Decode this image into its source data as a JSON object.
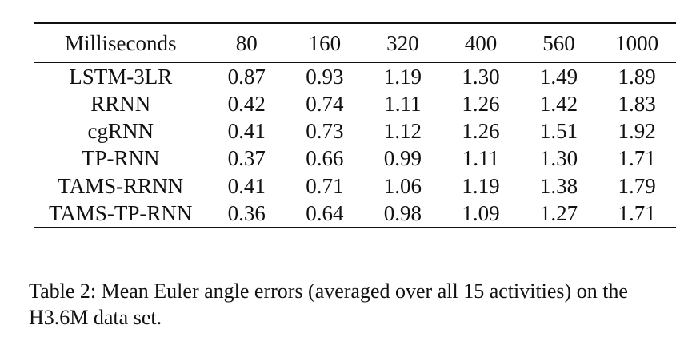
{
  "table": {
    "header": [
      "Milliseconds",
      "80",
      "160",
      "320",
      "400",
      "560",
      "1000"
    ],
    "group1": [
      {
        "method": "LSTM-3LR",
        "values": [
          "0.87",
          "0.93",
          "1.19",
          "1.30",
          "1.49",
          "1.89"
        ],
        "bold": [
          false,
          false,
          false,
          false,
          false,
          false
        ]
      },
      {
        "method": "RRNN",
        "values": [
          "0.42",
          "0.74",
          "1.11",
          "1.26",
          "1.42",
          "1.83"
        ],
        "bold": [
          false,
          false,
          false,
          false,
          false,
          false
        ]
      },
      {
        "method": "cgRNN",
        "values": [
          "0.41",
          "0.73",
          "1.12",
          "1.26",
          "1.51",
          "1.92"
        ],
        "bold": [
          false,
          false,
          false,
          false,
          false,
          false
        ]
      },
      {
        "method": "TP-RNN",
        "values": [
          "0.37",
          "0.66",
          "0.99",
          "1.11",
          "1.30",
          "1.71"
        ],
        "bold": [
          false,
          false,
          false,
          false,
          false,
          true
        ]
      }
    ],
    "group2": [
      {
        "method": "TAMS-RRNN",
        "values": [
          "0.41",
          "0.71",
          "1.06",
          "1.19",
          "1.38",
          "1.79"
        ],
        "bold": [
          false,
          false,
          false,
          false,
          false,
          false
        ]
      },
      {
        "method": "TAMS-TP-RNN",
        "values": [
          "0.36",
          "0.64",
          "0.98",
          "1.09",
          "1.27",
          "1.71"
        ],
        "bold": [
          true,
          true,
          true,
          true,
          true,
          true
        ]
      }
    ]
  },
  "caption": {
    "text": "Table 2: Mean Euler angle errors (averaged over all 15 activities) on the H3.6M data set."
  }
}
